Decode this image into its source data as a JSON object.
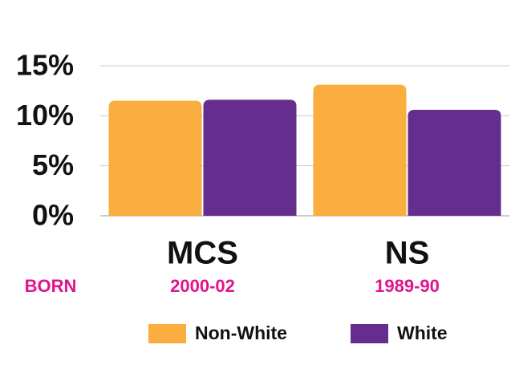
{
  "chart_data": {
    "type": "bar",
    "categories": [
      "MCS",
      "NS"
    ],
    "sublabel_title": "BORN",
    "sublabels": [
      "2000-02",
      "1989-90"
    ],
    "series": [
      {
        "name": "Non-White",
        "color": "#f9ae3f",
        "values": [
          11.5,
          13.1
        ]
      },
      {
        "name": "White",
        "color": "#652d8e",
        "values": [
          11.6,
          10.6
        ]
      }
    ],
    "ylim": [
      0,
      15
    ],
    "yticks": [
      {
        "value": 0,
        "label": "0%"
      },
      {
        "value": 5,
        "label": "5%"
      },
      {
        "value": 10,
        "label": "10%"
      },
      {
        "value": 15,
        "label": "15%"
      }
    ],
    "grid": true,
    "sublabel_color": "#e0148c"
  }
}
